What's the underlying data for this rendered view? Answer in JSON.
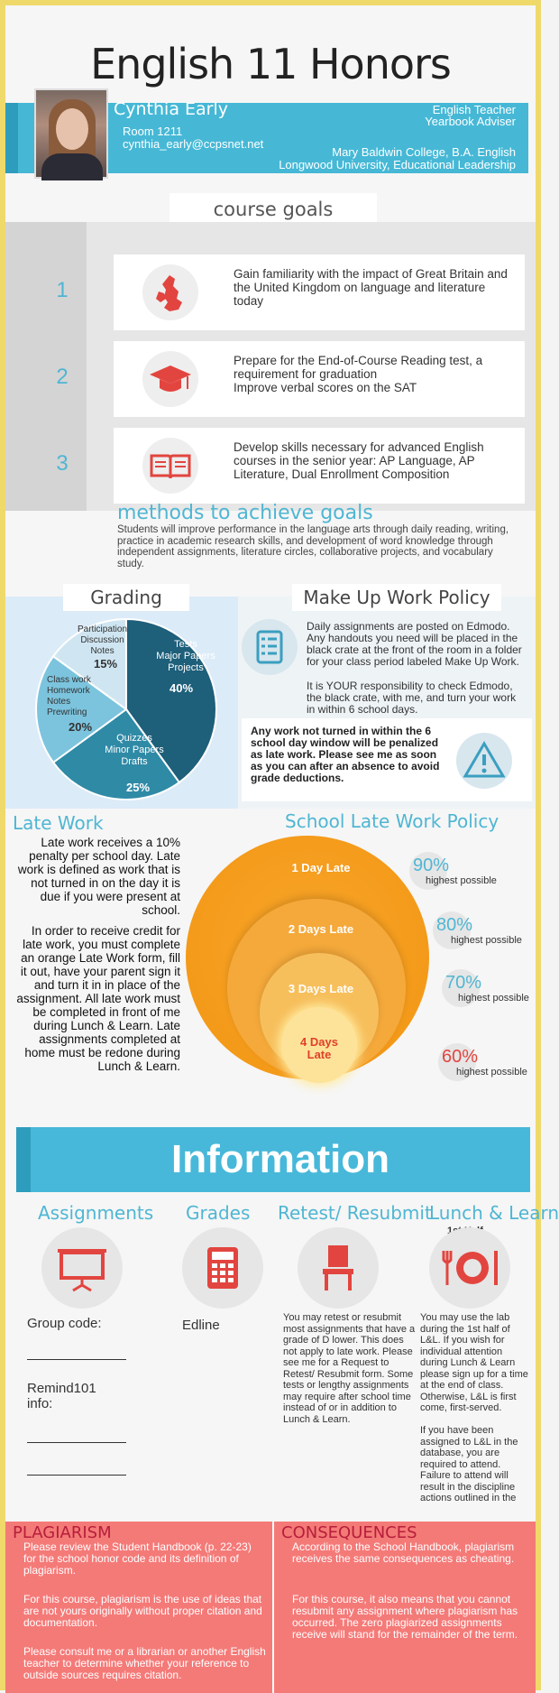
{
  "header": {
    "title": "English 11 Honors",
    "name": "Cynthia Early",
    "room": "Room 1211",
    "email": "cynthia_early@ccpsnet.net",
    "role1": "English Teacher",
    "role2": "Yearbook Adviser",
    "edu1": "Mary Baldwin College, B.A. English",
    "edu2": "Longwood University, Educational Leadership"
  },
  "goals": {
    "heading": "course goals",
    "items": [
      {
        "num": "1",
        "icon": "uk-map-icon",
        "text": "Gain familiarity with the impact of Great Britain and the United Kingdom on language and literature today"
      },
      {
        "num": "2",
        "icon": "graduation-cap-icon",
        "text": "Prepare for the End-of-Course Reading test, a requirement for graduation\nImprove verbal scores on the SAT"
      },
      {
        "num": "3",
        "icon": "open-book-icon",
        "text": "Develop skills necessary for advanced English courses in the senior year: AP Language, AP Literature, Dual Enrollment Composition"
      }
    ],
    "methods_title": "methods to achieve goals",
    "methods_text": "Students will improve performance in the language arts through daily reading, writing, practice in academic research skills, and development of word knowledge through independent assignments, literature circles, collaborative projects, and vocabulary study."
  },
  "grading": {
    "heading": "Grading",
    "slices": [
      {
        "label": "Tests\nMajor Papers\nProjects",
        "percent": "40%",
        "value": 40,
        "color": "#1e5f7a"
      },
      {
        "label": "Quizzes\nMinor Papers\nDrafts",
        "percent": "25%",
        "value": 25,
        "color": "#2f8aa6"
      },
      {
        "label": "Class work\nHomework\nNotes\nPrewriting",
        "percent": "20%",
        "value": 20,
        "color": "#7cc4de"
      },
      {
        "label": "Participation\nDiscussion\nNotes",
        "percent": "15%",
        "value": 15,
        "color": "#cfe6f2"
      }
    ]
  },
  "makeup": {
    "heading": "Make Up Work Policy",
    "p1": "Daily assignments are posted on Edmodo. Any handouts you need will be placed in the black crate at the front of the room in a folder for your class period labeled Make Up Work.",
    "p2": "It is YOUR responsibility to check Edmodo, the black crate, with me, and turn your work in within 6 school days.",
    "warning": "Any work not turned in within the 6 school day window will be penalized as late work.  Please see me as soon as you can after an absence to avoid grade deductions."
  },
  "late": {
    "heading": "Late Work",
    "p1": "Late work receives a 10% penalty per school day. Late work is defined as work that is not turned in on the day it is due if you were present at school.",
    "p2": "In order to receive credit for late work, you must complete an orange Late Work form, fill it out, have your parent sign it and turn it in in place of the assignment.  All late work must be completed in front of me during Lunch & Learn. Late assignments completed at home must be redone during Lunch & Learn.",
    "policy_heading": "School Late Work Policy",
    "rings": [
      {
        "label": "1 Day Late",
        "pct": "90%",
        "note": "highest possible"
      },
      {
        "label": "2 Days Late",
        "pct": "80%",
        "note": "highest possible"
      },
      {
        "label": "3 Days Late",
        "pct": "70%",
        "note": "highest possible"
      },
      {
        "label": "4 Days\nLate",
        "pct": "60%",
        "note": "highest possible"
      }
    ]
  },
  "info": {
    "banner": "Information",
    "assignments": {
      "title": "Assignments",
      "group": "Group code:",
      "remind": "Remind101\ninfo:"
    },
    "grades": {
      "title": "Grades",
      "edline": "Edline"
    },
    "retest": {
      "title": "Retest/ Resubmit",
      "text": "You may retest or resubmit most assignments that have a grade of D lower.  This does not apply to late work.  Please see me for a Request to Retest/ Resubmit form.  Some tests or lengthy assignments may require after school time instead of or in addition to Lunch & Learn."
    },
    "lunch": {
      "title": "Lunch & Learn",
      "sub": "1st Half",
      "text": "You may use the lab during the 1st half of L&L.  If you wish for individual attention during Lunch & Learn please sign up for a time at the end of class. Otherwise, L&L is first come, first-served.\n\nIf you have been assigned to L&L in the database, you are required to attend. Failure to attend will result in the discipline actions outlined in the"
    }
  },
  "plagiarism": {
    "title": "PLAGIARISM",
    "p1": "Please review the Student Handbook (p. 22-23)  for the school honor code and its definition of plagiarism.",
    "p2": "For this course, plagiarism is the use of ideas that are not yours originally without proper citation and documentation.",
    "p3": "Please consult me or a librarian or another English teacher to determine whether your reference to outside sources requires citation."
  },
  "consequences": {
    "title": "CONSEQUENCES",
    "p1": "According to the School Handbook, plagiarism receives the same consequences as cheating.",
    "p2": "For this course, it also means that you cannot resubmit any assignment where plagiarism has occurred.  The zero plagiarized assignments receive will stand for the remainder of the term."
  }
}
